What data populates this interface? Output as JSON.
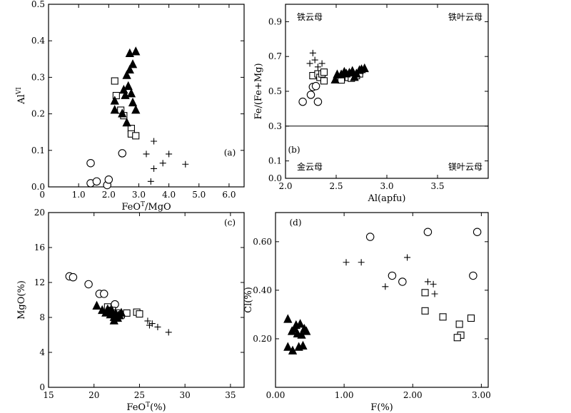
{
  "chart_data": [
    {
      "id": "a",
      "type": "scatter",
      "panel_label": "(a)",
      "xlabel": "FeO",
      "xlabel_sup": "T",
      "xlabel_tail": "/MgO",
      "ylabel": "Al",
      "ylabel_sup": "VI",
      "xlim": [
        0,
        6.5
      ],
      "ylim": [
        0,
        0.5
      ],
      "xticks": [
        1.0,
        2.0,
        3.0,
        4.0,
        5.0,
        6.0
      ],
      "xtick_labels": [
        "1.0",
        "2.0",
        "3.0",
        "4.0",
        "5.0",
        "6.0"
      ],
      "yticks": [
        0.1,
        0.2,
        0.3,
        0.4,
        0.5
      ],
      "ytick_labels": [
        "0.1",
        "0.2",
        "0.3",
        "0.4",
        "0.5"
      ],
      "origin_labels": [
        "0",
        "0.0"
      ],
      "series": [
        {
          "marker": "circle",
          "points": [
            [
              1.4,
              0.065
            ],
            [
              1.4,
              0.01
            ],
            [
              1.6,
              0.015
            ],
            [
              1.95,
              0.005
            ],
            [
              2.0,
              0.02
            ],
            [
              2.45,
              0.092
            ]
          ]
        },
        {
          "marker": "square",
          "points": [
            [
              2.2,
              0.29
            ],
            [
              2.25,
              0.25
            ],
            [
              2.4,
              0.21
            ],
            [
              2.5,
              0.195
            ],
            [
              2.75,
              0.16
            ],
            [
              2.75,
              0.145
            ],
            [
              2.9,
              0.14
            ]
          ]
        },
        {
          "marker": "triangle",
          "points": [
            [
              2.7,
              0.365
            ],
            [
              2.9,
              0.37
            ],
            [
              2.8,
              0.335
            ],
            [
              2.7,
              0.32
            ],
            [
              2.6,
              0.305
            ],
            [
              2.5,
              0.265
            ],
            [
              2.65,
              0.275
            ],
            [
              2.75,
              0.255
            ],
            [
              2.8,
              0.23
            ],
            [
              2.2,
              0.235
            ],
            [
              2.55,
              0.25
            ],
            [
              2.2,
              0.21
            ],
            [
              2.45,
              0.2
            ],
            [
              2.9,
              0.21
            ],
            [
              2.6,
              0.175
            ]
          ]
        },
        {
          "marker": "plus",
          "points": [
            [
              3.5,
              0.125
            ],
            [
              3.25,
              0.09
            ],
            [
              4.0,
              0.09
            ],
            [
              3.5,
              0.05
            ],
            [
              3.8,
              0.065
            ],
            [
              4.55,
              0.062
            ],
            [
              3.4,
              0.015
            ]
          ]
        }
      ]
    },
    {
      "id": "b",
      "type": "scatter",
      "panel_label": "(b)",
      "xlabel": "Al(apfu)",
      "ylabel": "Fe/(Fe+Mg)",
      "xlim": [
        2.0,
        4.0
      ],
      "ylim": [
        0.0,
        1.0
      ],
      "xticks": [
        2.0,
        2.5,
        3.0,
        3.5
      ],
      "xtick_labels": [
        "2.0",
        "2.5",
        "3.0",
        "3.5"
      ],
      "yticks": [
        0.0,
        0.1,
        0.3,
        0.5,
        0.7,
        0.9
      ],
      "ytick_labels": [
        "0.0",
        "0.1",
        "0.3",
        "0.5",
        "0.7",
        "0.9"
      ],
      "reference_line_y": 0.3,
      "zone_labels": {
        "top_left": "铁云母",
        "top_right": "铁叶云母",
        "bottom_left": "金云母",
        "bottom_right": "镁叶云母"
      },
      "series": [
        {
          "marker": "circle",
          "points": [
            [
              2.17,
              0.44
            ],
            [
              2.25,
              0.48
            ],
            [
              2.27,
              0.525
            ],
            [
              2.3,
              0.53
            ],
            [
              2.32,
              0.44
            ]
          ]
        },
        {
          "marker": "square",
          "points": [
            [
              2.27,
              0.59
            ],
            [
              2.32,
              0.6
            ],
            [
              2.34,
              0.58
            ],
            [
              2.36,
              0.6
            ],
            [
              2.38,
              0.61
            ],
            [
              2.38,
              0.56
            ],
            [
              2.55,
              0.565
            ],
            [
              2.62,
              0.58
            ],
            [
              2.65,
              0.575
            ],
            [
              2.7,
              0.59
            ],
            [
              2.73,
              0.6
            ]
          ]
        },
        {
          "marker": "triangle",
          "points": [
            [
              2.49,
              0.565
            ],
            [
              2.51,
              0.595
            ],
            [
              2.55,
              0.595
            ],
            [
              2.58,
              0.61
            ],
            [
              2.6,
              0.6
            ],
            [
              2.63,
              0.605
            ],
            [
              2.66,
              0.615
            ],
            [
              2.7,
              0.6
            ],
            [
              2.68,
              0.58
            ],
            [
              2.73,
              0.62
            ],
            [
              2.75,
              0.625
            ],
            [
              2.78,
              0.63
            ]
          ]
        },
        {
          "marker": "plus",
          "points": [
            [
              2.24,
              0.66
            ],
            [
              2.27,
              0.72
            ],
            [
              2.29,
              0.68
            ],
            [
              2.32,
              0.64
            ],
            [
              2.36,
              0.66
            ]
          ]
        }
      ]
    },
    {
      "id": "c",
      "type": "scatter",
      "panel_label": "(c)",
      "xlabel": "FeO",
      "xlabel_sup": "T",
      "xlabel_tail": "(%)",
      "ylabel": "MgO(%)",
      "xlim": [
        15,
        36.5
      ],
      "ylim": [
        0,
        20
      ],
      "xticks": [
        15,
        20,
        25,
        30,
        35
      ],
      "xtick_labels": [
        "15",
        "20",
        "25",
        "30",
        "35"
      ],
      "yticks": [
        0,
        4,
        8,
        12,
        16,
        20
      ],
      "ytick_labels": [
        "0",
        "4",
        "8",
        "12",
        "16",
        "20"
      ],
      "series": [
        {
          "marker": "circle",
          "points": [
            [
              17.3,
              12.7
            ],
            [
              17.7,
              12.6
            ],
            [
              19.4,
              11.8
            ],
            [
              20.6,
              10.7
            ],
            [
              21.1,
              10.7
            ],
            [
              22.3,
              9.5
            ]
          ]
        },
        {
          "marker": "square",
          "points": [
            [
              21.5,
              9.2
            ],
            [
              22.0,
              8.8
            ],
            [
              22.5,
              8.5
            ],
            [
              23.0,
              8.3
            ],
            [
              23.6,
              8.5
            ],
            [
              24.7,
              8.6
            ],
            [
              25.0,
              8.4
            ]
          ]
        },
        {
          "marker": "triangle",
          "points": [
            [
              20.3,
              9.3
            ],
            [
              20.9,
              8.8
            ],
            [
              21.3,
              8.5
            ],
            [
              21.5,
              8.9
            ],
            [
              21.8,
              8.3
            ],
            [
              22.0,
              8.7
            ],
            [
              22.2,
              8.0
            ],
            [
              22.4,
              8.4
            ],
            [
              22.6,
              7.9
            ],
            [
              22.8,
              8.2
            ],
            [
              23.0,
              8.5
            ],
            [
              22.2,
              7.6
            ],
            [
              21.8,
              8.7
            ]
          ]
        },
        {
          "marker": "plus",
          "points": [
            [
              25.9,
              7.6
            ],
            [
              26.1,
              7.1
            ],
            [
              26.4,
              7.3
            ],
            [
              27.0,
              6.9
            ],
            [
              28.2,
              6.3
            ]
          ]
        }
      ]
    },
    {
      "id": "d",
      "type": "scatter",
      "panel_label": "(d)",
      "xlabel": "F(%)",
      "ylabel": "Cl(%)",
      "xlim": [
        0.0,
        3.1
      ],
      "ylim": [
        0.0,
        0.72
      ],
      "xticks": [
        0.0,
        1.0,
        2.0,
        3.0
      ],
      "xtick_labels": [
        "0.00",
        "1.00",
        "2.00",
        "3.00"
      ],
      "yticks": [
        0.2,
        0.4,
        0.6
      ],
      "ytick_labels": [
        "0.20",
        "0.40",
        "0.60"
      ],
      "series": [
        {
          "marker": "circle",
          "points": [
            [
              1.38,
              0.62
            ],
            [
              2.22,
              0.64
            ],
            [
              2.94,
              0.64
            ],
            [
              1.7,
              0.46
            ],
            [
              1.85,
              0.435
            ],
            [
              2.88,
              0.46
            ]
          ]
        },
        {
          "marker": "square",
          "points": [
            [
              2.18,
              0.39
            ],
            [
              2.18,
              0.315
            ],
            [
              2.44,
              0.29
            ],
            [
              2.85,
              0.285
            ],
            [
              2.68,
              0.26
            ],
            [
              2.7,
              0.215
            ],
            [
              2.65,
              0.205
            ]
          ]
        },
        {
          "marker": "triangle",
          "points": [
            [
              0.18,
              0.28
            ],
            [
              0.3,
              0.255
            ],
            [
              0.36,
              0.26
            ],
            [
              0.42,
              0.24
            ],
            [
              0.24,
              0.23
            ],
            [
              0.32,
              0.22
            ],
            [
              0.38,
              0.215
            ],
            [
              0.45,
              0.23
            ],
            [
              0.28,
              0.24
            ],
            [
              0.18,
              0.165
            ],
            [
              0.25,
              0.15
            ],
            [
              0.34,
              0.165
            ],
            [
              0.4,
              0.17
            ]
          ]
        },
        {
          "marker": "plus",
          "points": [
            [
              1.03,
              0.515
            ],
            [
              1.25,
              0.515
            ],
            [
              1.92,
              0.535
            ],
            [
              1.6,
              0.415
            ],
            [
              2.22,
              0.435
            ],
            [
              2.3,
              0.425
            ],
            [
              2.32,
              0.385
            ]
          ]
        }
      ]
    }
  ]
}
